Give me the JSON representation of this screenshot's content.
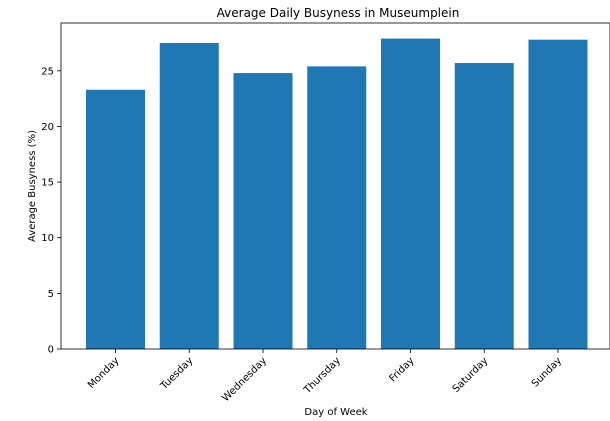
{
  "chart_data": {
    "type": "bar",
    "title": "Average Daily Busyness in Museumplein",
    "xlabel": "Day of Week",
    "ylabel": "Average Busyness (%)",
    "categories": [
      "Monday",
      "Tuesday",
      "Wednesday",
      "Thursday",
      "Friday",
      "Saturday",
      "Sunday"
    ],
    "values": [
      23.3,
      27.5,
      24.8,
      25.4,
      27.9,
      25.7,
      27.8
    ],
    "ylim": [
      0,
      29.3
    ],
    "yticks": [
      0,
      5,
      10,
      15,
      20,
      25
    ],
    "grid": false,
    "bar_color": "#1f77b4"
  }
}
